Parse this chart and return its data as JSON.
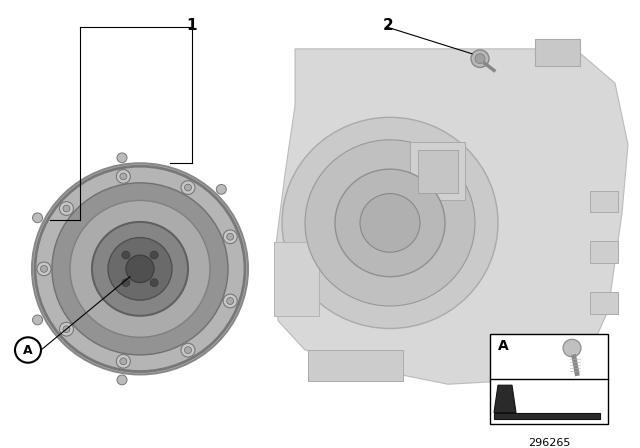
{
  "background_color": "#ffffff",
  "part_number": "296265",
  "label1": "1",
  "label2": "2",
  "labelA": "A",
  "line_color": "#000000",
  "text_color": "#000000"
}
